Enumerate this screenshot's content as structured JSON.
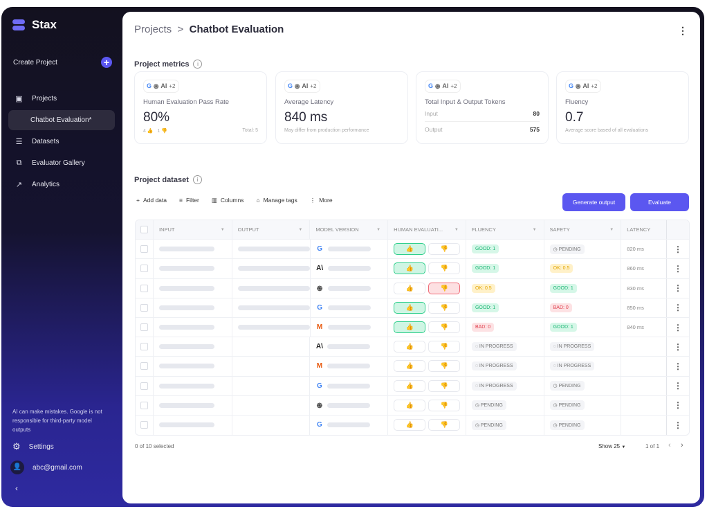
{
  "app": {
    "name": "Stax"
  },
  "sidebar": {
    "create_label": "Create Project",
    "items": [
      {
        "label": "Projects",
        "icon": "projects-icon"
      },
      {
        "label": "Chatbot Evaluation*",
        "icon": ""
      },
      {
        "label": "Datasets",
        "icon": "datasets-icon"
      },
      {
        "label": "Evaluator Gallery",
        "icon": "gallery-icon"
      },
      {
        "label": "Analytics",
        "icon": "analytics-icon"
      }
    ],
    "disclaimer": "AI can make mistakes. Google is not responsible for third-party model outputs",
    "settings": "Settings",
    "user": "abc@gmail.com"
  },
  "breadcrumb": {
    "root": "Projects",
    "sep": ">",
    "current": "Chatbot Evaluation"
  },
  "metrics": {
    "title": "Project metrics",
    "more": "+2",
    "pass_rate": {
      "title": "Human Evaluation Pass Rate",
      "value": "80%",
      "up": "4",
      "down": "1",
      "total": "Total: 5"
    },
    "latency": {
      "title": "Average Latency",
      "value": "840 ms",
      "note": "May differ from production performance"
    },
    "tokens": {
      "title": "Total Input & Output Tokens",
      "input_label": "Input",
      "input": "80",
      "output_label": "Output",
      "output": "575"
    },
    "fluency": {
      "title": "Fluency",
      "value": "0.7",
      "note": "Average score based of all evaluations"
    }
  },
  "dataset": {
    "title": "Project dataset",
    "toolbar": {
      "add": "Add data",
      "filter": "Filter",
      "columns": "Columns",
      "tags": "Manage tags",
      "more": "More",
      "generate": "Generate output",
      "evaluate": "Evaluate"
    },
    "columns": [
      "INPUT",
      "OUTPUT",
      "MODEL VERSION",
      "HUMAN EVALUATI...",
      "FLUENCY",
      "SAFETY",
      "LATENCY"
    ],
    "rows": [
      {
        "model": "google",
        "human": "up",
        "fluency": {
          "t": "GOOD: 1",
          "k": "good"
        },
        "safety": {
          "t": "PENDING",
          "k": "pending"
        },
        "latency": "820 ms",
        "output": true
      },
      {
        "model": "anthropic",
        "human": "up",
        "fluency": {
          "t": "GOOD: 1",
          "k": "good"
        },
        "safety": {
          "t": "OK: 0.5",
          "k": "ok"
        },
        "latency": "860 ms",
        "output": true
      },
      {
        "model": "openai",
        "human": "down",
        "fluency": {
          "t": "OK: 0.5",
          "k": "ok"
        },
        "safety": {
          "t": "GOOD: 1",
          "k": "good"
        },
        "latency": "830 ms",
        "output": true
      },
      {
        "model": "google",
        "human": "up",
        "fluency": {
          "t": "GOOD: 1",
          "k": "good"
        },
        "safety": {
          "t": "BAD: 0",
          "k": "bad"
        },
        "latency": "850 ms",
        "output": true
      },
      {
        "model": "meta",
        "human": "up",
        "fluency": {
          "t": "BAD: 0",
          "k": "bad"
        },
        "safety": {
          "t": "GOOD: 1",
          "k": "good"
        },
        "latency": "840 ms",
        "output": true
      },
      {
        "model": "anthropic",
        "human": "",
        "fluency": {
          "t": "IN PROGRESS",
          "k": "progress"
        },
        "safety": {
          "t": "IN PROGRESS",
          "k": "progress"
        },
        "latency": "",
        "output": false
      },
      {
        "model": "meta",
        "human": "",
        "fluency": {
          "t": "IN PROGRESS",
          "k": "progress"
        },
        "safety": {
          "t": "IN PROGRESS",
          "k": "progress"
        },
        "latency": "",
        "output": false
      },
      {
        "model": "google",
        "human": "",
        "fluency": {
          "t": "IN PROGRESS",
          "k": "progress"
        },
        "safety": {
          "t": "PENDING",
          "k": "pending"
        },
        "latency": "",
        "output": false
      },
      {
        "model": "openai",
        "human": "",
        "fluency": {
          "t": "PENDING",
          "k": "pending"
        },
        "safety": {
          "t": "PENDING",
          "k": "pending"
        },
        "latency": "",
        "output": false
      },
      {
        "model": "google",
        "human": "",
        "fluency": {
          "t": "PENDING",
          "k": "pending"
        },
        "safety": {
          "t": "PENDING",
          "k": "pending"
        },
        "latency": "",
        "output": false
      }
    ],
    "footer": {
      "selected": "0 of 10 selected",
      "show": "Show 25",
      "page": "1 of 1"
    }
  },
  "colors": {
    "accent": "#5b57f0",
    "good": "#1bb673",
    "ok": "#e2a500",
    "bad": "#e0424f"
  }
}
